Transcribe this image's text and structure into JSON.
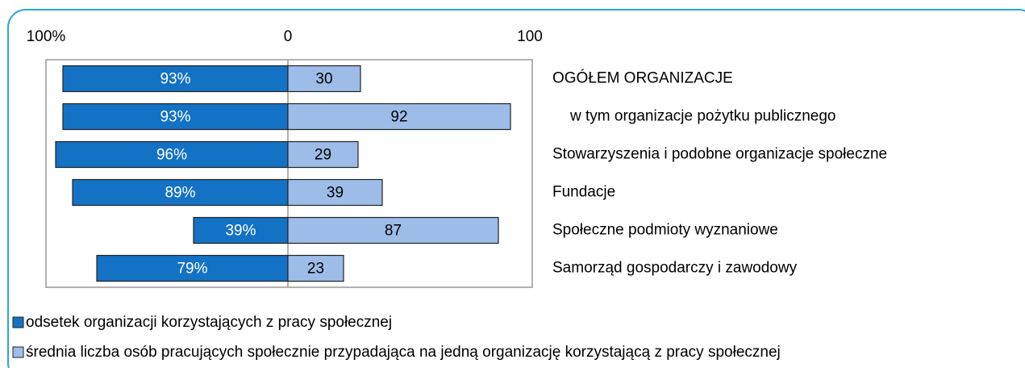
{
  "chart_data": {
    "type": "diverging-bar",
    "categories": [
      "OGÓŁEM ORGANIZACJE",
      "w tym organizacje pożytku publicznego",
      "Stowarzyszenia i podobne organizacje społeczne",
      "Fundacje",
      "Społeczne podmioty wyznaniowe",
      "Samorząd gospodarczy i zawodowy"
    ],
    "series": [
      {
        "name": "odsetek organizacji korzystających z pracy społecznej",
        "color": "#1372c4",
        "direction": "left",
        "values": [
          93,
          93,
          96,
          89,
          39,
          79
        ],
        "value_labels": [
          "93%",
          "93%",
          "96%",
          "89%",
          "39%",
          "79%"
        ]
      },
      {
        "name": "średnia liczba osób pracujących społecznie przypadająca na jedną organizację korzystającą z pracy społecznej",
        "color": "#9dbde8",
        "direction": "right",
        "values": [
          30,
          92,
          29,
          39,
          87,
          23
        ]
      }
    ],
    "xlim": [
      -100,
      100
    ],
    "xticks": [
      {
        "value": -100,
        "label": "100%"
      },
      0,
      100
    ]
  }
}
